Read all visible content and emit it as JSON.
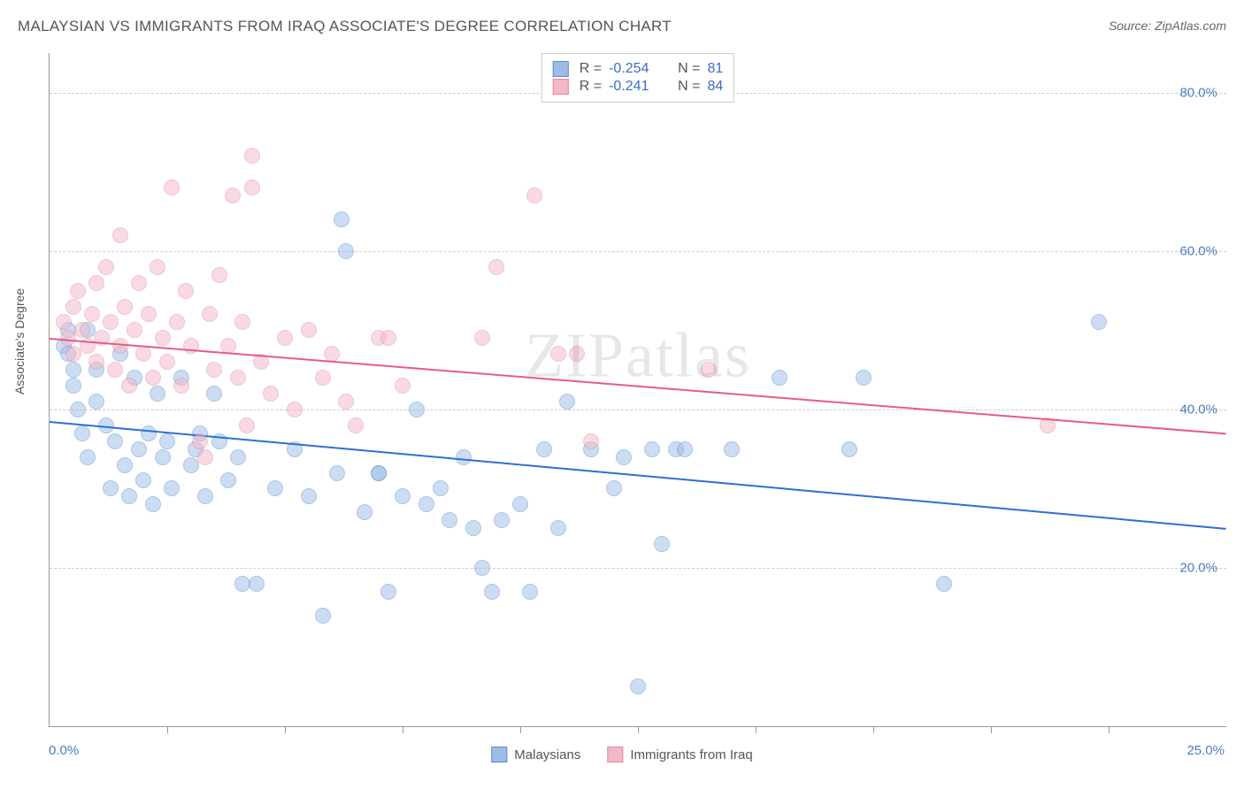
{
  "title": "MALAYSIAN VS IMMIGRANTS FROM IRAQ ASSOCIATE'S DEGREE CORRELATION CHART",
  "source_label": "Source: ",
  "source_name": "ZipAtlas.com",
  "watermark": "ZIPatlas",
  "y_axis_label": "Associate's Degree",
  "chart": {
    "type": "scatter",
    "xlim": [
      0,
      25
    ],
    "ylim": [
      0,
      85
    ],
    "x_tick_label_left": "0.0%",
    "x_tick_label_right": "25.0%",
    "x_tick_positions": [
      2.5,
      5.0,
      7.5,
      10.0,
      12.5,
      15.0,
      17.5,
      20.0,
      22.5
    ],
    "y_ticks": [
      {
        "value": 20,
        "label": "20.0%"
      },
      {
        "value": 40,
        "label": "40.0%"
      },
      {
        "value": 60,
        "label": "60.0%"
      },
      {
        "value": 80,
        "label": "80.0%"
      }
    ],
    "grid_color": "#cccccc",
    "background_color": "#ffffff",
    "marker_radius": 9,
    "marker_opacity": 0.5,
    "series": [
      {
        "name": "Malaysians",
        "fill_color": "#9bbde8",
        "stroke_color": "#5a8cce",
        "line_color": "#2d6fd6",
        "r_label": "R =",
        "r_value": "-0.254",
        "n_label": "N =",
        "n_value": "81",
        "trend_start": {
          "x": 0,
          "y": 38.5
        },
        "trend_end": {
          "x": 25,
          "y": 25.0
        },
        "points": [
          {
            "x": 0.3,
            "y": 48
          },
          {
            "x": 0.4,
            "y": 50
          },
          {
            "x": 0.4,
            "y": 47
          },
          {
            "x": 0.5,
            "y": 45
          },
          {
            "x": 0.5,
            "y": 43
          },
          {
            "x": 0.6,
            "y": 40
          },
          {
            "x": 0.7,
            "y": 37
          },
          {
            "x": 0.8,
            "y": 50
          },
          {
            "x": 0.8,
            "y": 34
          },
          {
            "x": 1.0,
            "y": 45
          },
          {
            "x": 1.0,
            "y": 41
          },
          {
            "x": 1.2,
            "y": 38
          },
          {
            "x": 1.3,
            "y": 30
          },
          {
            "x": 1.4,
            "y": 36
          },
          {
            "x": 1.5,
            "y": 47
          },
          {
            "x": 1.6,
            "y": 33
          },
          {
            "x": 1.7,
            "y": 29
          },
          {
            "x": 1.8,
            "y": 44
          },
          {
            "x": 1.9,
            "y": 35
          },
          {
            "x": 2.0,
            "y": 31
          },
          {
            "x": 2.1,
            "y": 37
          },
          {
            "x": 2.2,
            "y": 28
          },
          {
            "x": 2.3,
            "y": 42
          },
          {
            "x": 2.4,
            "y": 34
          },
          {
            "x": 2.5,
            "y": 36
          },
          {
            "x": 2.6,
            "y": 30
          },
          {
            "x": 2.8,
            "y": 44
          },
          {
            "x": 3.0,
            "y": 33
          },
          {
            "x": 3.1,
            "y": 35
          },
          {
            "x": 3.2,
            "y": 37
          },
          {
            "x": 3.3,
            "y": 29
          },
          {
            "x": 3.5,
            "y": 42
          },
          {
            "x": 3.6,
            "y": 36
          },
          {
            "x": 3.8,
            "y": 31
          },
          {
            "x": 4.0,
            "y": 34
          },
          {
            "x": 4.1,
            "y": 18
          },
          {
            "x": 4.4,
            "y": 18
          },
          {
            "x": 4.8,
            "y": 30
          },
          {
            "x": 5.2,
            "y": 35
          },
          {
            "x": 5.5,
            "y": 29
          },
          {
            "x": 5.8,
            "y": 14
          },
          {
            "x": 6.1,
            "y": 32
          },
          {
            "x": 6.2,
            "y": 64
          },
          {
            "x": 6.3,
            "y": 60
          },
          {
            "x": 6.7,
            "y": 27
          },
          {
            "x": 7.0,
            "y": 32
          },
          {
            "x": 7.0,
            "y": 32
          },
          {
            "x": 7.2,
            "y": 17
          },
          {
            "x": 7.5,
            "y": 29
          },
          {
            "x": 7.8,
            "y": 40
          },
          {
            "x": 8.0,
            "y": 28
          },
          {
            "x": 8.3,
            "y": 30
          },
          {
            "x": 8.5,
            "y": 26
          },
          {
            "x": 8.8,
            "y": 34
          },
          {
            "x": 9.0,
            "y": 25
          },
          {
            "x": 9.2,
            "y": 20
          },
          {
            "x": 9.4,
            "y": 17
          },
          {
            "x": 9.6,
            "y": 26
          },
          {
            "x": 10.0,
            "y": 28
          },
          {
            "x": 10.2,
            "y": 17
          },
          {
            "x": 10.5,
            "y": 35
          },
          {
            "x": 10.8,
            "y": 25
          },
          {
            "x": 11.0,
            "y": 41
          },
          {
            "x": 11.5,
            "y": 35
          },
          {
            "x": 12.0,
            "y": 30
          },
          {
            "x": 12.2,
            "y": 34
          },
          {
            "x": 12.5,
            "y": 5
          },
          {
            "x": 12.8,
            "y": 35
          },
          {
            "x": 13.0,
            "y": 23
          },
          {
            "x": 13.3,
            "y": 35
          },
          {
            "x": 13.5,
            "y": 35
          },
          {
            "x": 14.5,
            "y": 35
          },
          {
            "x": 15.5,
            "y": 44
          },
          {
            "x": 17.0,
            "y": 35
          },
          {
            "x": 17.3,
            "y": 44
          },
          {
            "x": 19.0,
            "y": 18
          },
          {
            "x": 22.3,
            "y": 51
          }
        ]
      },
      {
        "name": "Immigrants from Iraq",
        "fill_color": "#f4b7c6",
        "stroke_color": "#e08aa0",
        "line_color": "#e85b83",
        "r_label": "R =",
        "r_value": "-0.241",
        "n_label": "N =",
        "n_value": "84",
        "trend_start": {
          "x": 0,
          "y": 49.0
        },
        "trend_end": {
          "x": 25,
          "y": 37.0
        },
        "points": [
          {
            "x": 0.3,
            "y": 51
          },
          {
            "x": 0.4,
            "y": 49
          },
          {
            "x": 0.5,
            "y": 53
          },
          {
            "x": 0.5,
            "y": 47
          },
          {
            "x": 0.6,
            "y": 55
          },
          {
            "x": 0.7,
            "y": 50
          },
          {
            "x": 0.8,
            "y": 48
          },
          {
            "x": 0.9,
            "y": 52
          },
          {
            "x": 1.0,
            "y": 46
          },
          {
            "x": 1.0,
            "y": 56
          },
          {
            "x": 1.1,
            "y": 49
          },
          {
            "x": 1.2,
            "y": 58
          },
          {
            "x": 1.3,
            "y": 51
          },
          {
            "x": 1.4,
            "y": 45
          },
          {
            "x": 1.5,
            "y": 62
          },
          {
            "x": 1.5,
            "y": 48
          },
          {
            "x": 1.6,
            "y": 53
          },
          {
            "x": 1.7,
            "y": 43
          },
          {
            "x": 1.8,
            "y": 50
          },
          {
            "x": 1.9,
            "y": 56
          },
          {
            "x": 2.0,
            "y": 47
          },
          {
            "x": 2.1,
            "y": 52
          },
          {
            "x": 2.2,
            "y": 44
          },
          {
            "x": 2.3,
            "y": 58
          },
          {
            "x": 2.4,
            "y": 49
          },
          {
            "x": 2.5,
            "y": 46
          },
          {
            "x": 2.6,
            "y": 68
          },
          {
            "x": 2.7,
            "y": 51
          },
          {
            "x": 2.8,
            "y": 43
          },
          {
            "x": 2.9,
            "y": 55
          },
          {
            "x": 3.0,
            "y": 48
          },
          {
            "x": 3.2,
            "y": 36
          },
          {
            "x": 3.3,
            "y": 34
          },
          {
            "x": 3.4,
            "y": 52
          },
          {
            "x": 3.5,
            "y": 45
          },
          {
            "x": 3.6,
            "y": 57
          },
          {
            "x": 3.8,
            "y": 48
          },
          {
            "x": 3.9,
            "y": 67
          },
          {
            "x": 4.0,
            "y": 44
          },
          {
            "x": 4.1,
            "y": 51
          },
          {
            "x": 4.2,
            "y": 38
          },
          {
            "x": 4.3,
            "y": 72
          },
          {
            "x": 4.3,
            "y": 68
          },
          {
            "x": 4.5,
            "y": 46
          },
          {
            "x": 4.7,
            "y": 42
          },
          {
            "x": 5.0,
            "y": 49
          },
          {
            "x": 5.2,
            "y": 40
          },
          {
            "x": 5.5,
            "y": 50
          },
          {
            "x": 5.8,
            "y": 44
          },
          {
            "x": 6.0,
            "y": 47
          },
          {
            "x": 6.3,
            "y": 41
          },
          {
            "x": 6.5,
            "y": 38
          },
          {
            "x": 7.0,
            "y": 49
          },
          {
            "x": 7.2,
            "y": 49
          },
          {
            "x": 7.5,
            "y": 43
          },
          {
            "x": 9.2,
            "y": 49
          },
          {
            "x": 9.5,
            "y": 58
          },
          {
            "x": 10.3,
            "y": 67
          },
          {
            "x": 10.8,
            "y": 47
          },
          {
            "x": 11.2,
            "y": 47
          },
          {
            "x": 11.5,
            "y": 36
          },
          {
            "x": 14.0,
            "y": 45
          },
          {
            "x": 21.2,
            "y": 38
          }
        ]
      }
    ],
    "bottom_legend": [
      {
        "label": "Malaysians",
        "fill": "#9bbde8",
        "stroke": "#5a8cce"
      },
      {
        "label": "Immigrants from Iraq",
        "fill": "#f4b7c6",
        "stroke": "#e08aa0"
      }
    ]
  }
}
